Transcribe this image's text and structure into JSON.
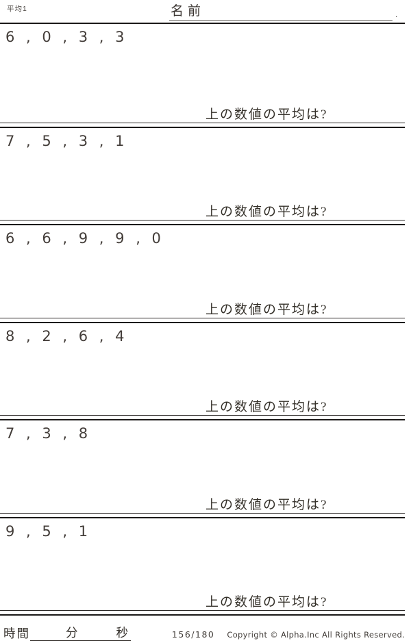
{
  "header": {
    "worksheet_title": "平均1",
    "name_label": "名前",
    "name_line_suffix": "."
  },
  "question_label": "上の数値の平均は?",
  "problems": [
    {
      "numbers": [
        6,
        0,
        3,
        3
      ],
      "display": "6 , 0 , 3 , 3",
      "question": "上の数値の平均は?"
    },
    {
      "numbers": [
        7,
        5,
        3,
        1
      ],
      "display": "7 , 5 , 3 , 1",
      "question": "上の数値の平均は?"
    },
    {
      "numbers": [
        6,
        6,
        9,
        9,
        0
      ],
      "display": "6 , 6 , 9 , 9 , 0",
      "question": "上の数値の平均は?"
    },
    {
      "numbers": [
        8,
        2,
        6,
        4
      ],
      "display": "8 , 2 , 6 , 4",
      "question": "上の数値の平均は?"
    },
    {
      "numbers": [
        7,
        3,
        8
      ],
      "display": "7 , 3 , 8",
      "question": "上の数値の平均は?"
    },
    {
      "numbers": [
        9,
        5,
        1
      ],
      "display": "9 , 5 , 1",
      "question": "上の数値の平均は?"
    }
  ],
  "footer": {
    "time_label": "時間",
    "minutes_label": "分",
    "seconds_label": "秒",
    "page_indicator": "156/180",
    "copyright": "Copyright ©  Alpha.Inc All Rights Reserved."
  },
  "colors": {
    "text": "#3d3733",
    "divider": "#1b1918",
    "answer_line": "#2b2826"
  }
}
